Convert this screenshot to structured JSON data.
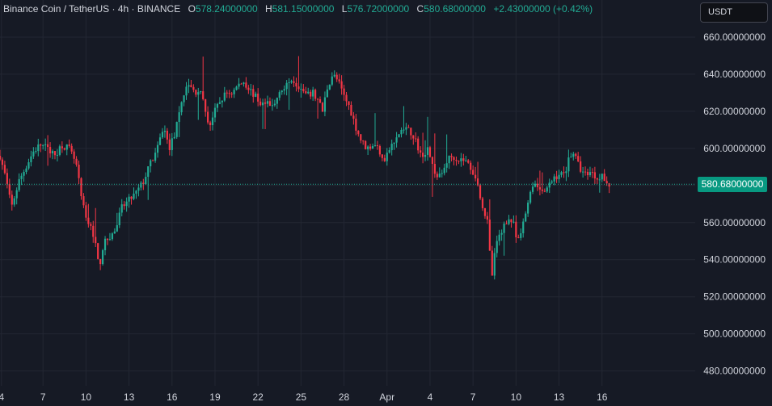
{
  "header": {
    "symbol": "Binance Coin / TetherUS · 4h · BINANCE",
    "o_label": "O",
    "o_value": "578.24000000",
    "h_label": "H",
    "h_value": "581.15000000",
    "l_label": "L",
    "l_value": "576.72000000",
    "c_label": "C",
    "c_value": "580.68000000",
    "change": "+2.43000000 (+0.42%)"
  },
  "currency_button": "USDT",
  "last_price_label": "580.68000000",
  "colors": {
    "background": "#161a25",
    "grid": "#232733",
    "up": "#22ab94",
    "down": "#f23645",
    "text": "#d1d4dc",
    "price_tag": "#089981"
  },
  "chart_data": {
    "type": "candlestick",
    "symbol": "Binance Coin / TetherUS",
    "interval": "4h",
    "exchange": "BINANCE",
    "last_price": 580.68,
    "y_axis": {
      "range": [
        472,
        680
      ],
      "ticks": [
        480,
        500,
        520,
        540,
        560,
        580,
        600,
        620,
        640,
        660
      ],
      "tick_labels": [
        "480.00000000",
        "500.00000000",
        "520.00000000",
        "540.00000000",
        "560.00000000",
        "580.00000000",
        "600.00000000",
        "620.00000000",
        "640.00000000",
        "660.00000000"
      ]
    },
    "x_axis": {
      "range": [
        0,
        48.5
      ],
      "ticks": [
        0.1,
        3,
        6,
        9,
        12,
        15,
        18,
        21,
        24,
        27,
        30,
        33,
        36,
        39,
        42,
        45
      ],
      "tick_labels": [
        "4",
        "7",
        "10",
        "13",
        "16",
        "19",
        "22",
        "25",
        "28",
        "Apr",
        "4",
        "7",
        "10",
        "13",
        "16"
      ],
      "tick_positions": [
        0.1,
        3,
        6,
        9,
        12,
        15,
        18,
        21,
        24,
        27,
        30,
        33,
        36,
        39,
        42
      ]
    },
    "close_path": [
      [
        0,
        596
      ],
      [
        0.4,
        584
      ],
      [
        0.8,
        568
      ],
      [
        1.3,
        582
      ],
      [
        1.8,
        590
      ],
      [
        2.3,
        598
      ],
      [
        2.8,
        602
      ],
      [
        3.3,
        600
      ],
      [
        3.8,
        596
      ],
      [
        4.3,
        602
      ],
      [
        4.8,
        600
      ],
      [
        5.3,
        592
      ],
      [
        5.7,
        572
      ],
      [
        6.0,
        562
      ],
      [
        6.3,
        558
      ],
      [
        6.6,
        552
      ],
      [
        6.9,
        535
      ],
      [
        7.2,
        548
      ],
      [
        7.6,
        552
      ],
      [
        8.0,
        555
      ],
      [
        8.5,
        568
      ],
      [
        9.0,
        572
      ],
      [
        9.5,
        576
      ],
      [
        10.0,
        582
      ],
      [
        10.5,
        592
      ],
      [
        11.0,
        600
      ],
      [
        11.4,
        612
      ],
      [
        11.8,
        600
      ],
      [
        12.2,
        608
      ],
      [
        12.5,
        618
      ],
      [
        12.8,
        630
      ],
      [
        13.2,
        634
      ],
      [
        13.6,
        630
      ],
      [
        13.9,
        632
      ],
      [
        14.2,
        624
      ],
      [
        14.6,
        612
      ],
      [
        15.0,
        620
      ],
      [
        15.4,
        626
      ],
      [
        15.8,
        630
      ],
      [
        16.2,
        630
      ],
      [
        16.6,
        634
      ],
      [
        17.0,
        636
      ],
      [
        17.4,
        632
      ],
      [
        17.8,
        628
      ],
      [
        18.2,
        624
      ],
      [
        18.6,
        624
      ],
      [
        18.9,
        622
      ],
      [
        19.2,
        624
      ],
      [
        19.5,
        632
      ],
      [
        19.9,
        632
      ],
      [
        20.3,
        638
      ],
      [
        20.6,
        636
      ],
      [
        21.0,
        632
      ],
      [
        21.4,
        628
      ],
      [
        21.8,
        630
      ],
      [
        22.2,
        626
      ],
      [
        22.5,
        620
      ],
      [
        22.8,
        632
      ],
      [
        23.2,
        640
      ],
      [
        23.6,
        636
      ],
      [
        24.0,
        628
      ],
      [
        24.4,
        622
      ],
      [
        24.8,
        612
      ],
      [
        25.2,
        604
      ],
      [
        25.6,
        600
      ],
      [
        26.0,
        602
      ],
      [
        26.4,
        600
      ],
      [
        26.8,
        594
      ],
      [
        27.2,
        600
      ],
      [
        27.6,
        604
      ],
      [
        28.0,
        610
      ],
      [
        28.4,
        610
      ],
      [
        28.8,
        608
      ],
      [
        29.2,
        600
      ],
      [
        29.5,
        594
      ],
      [
        29.8,
        602
      ],
      [
        30.2,
        590
      ],
      [
        30.5,
        584
      ],
      [
        30.8,
        586
      ],
      [
        31.2,
        594
      ],
      [
        31.6,
        596
      ],
      [
        32.0,
        594
      ],
      [
        32.4,
        594
      ],
      [
        32.8,
        590
      ],
      [
        33.1,
        586
      ],
      [
        33.4,
        578
      ],
      [
        33.7,
        568
      ],
      [
        34.0,
        560
      ],
      [
        34.3,
        530
      ],
      [
        34.6,
        548
      ],
      [
        35.0,
        556
      ],
      [
        35.4,
        562
      ],
      [
        35.8,
        560
      ],
      [
        36.1,
        548
      ],
      [
        36.4,
        556
      ],
      [
        36.7,
        566
      ],
      [
        37.0,
        578
      ],
      [
        37.4,
        582
      ],
      [
        37.8,
        576
      ],
      [
        38.2,
        578
      ],
      [
        38.6,
        584
      ],
      [
        39.0,
        586
      ],
      [
        39.4,
        586
      ],
      [
        39.7,
        596
      ],
      [
        40.0,
        598
      ],
      [
        40.4,
        590
      ],
      [
        40.8,
        586
      ],
      [
        41.2,
        588
      ],
      [
        41.6,
        584
      ],
      [
        42.0,
        586
      ],
      [
        42.3,
        580
      ],
      [
        42.6,
        580
      ]
    ]
  }
}
